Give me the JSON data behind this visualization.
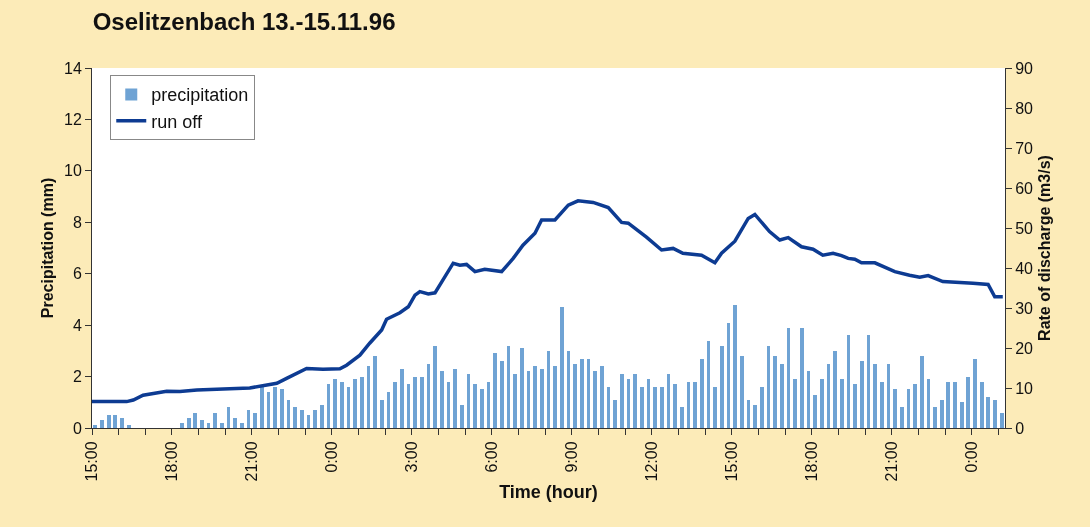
{
  "chart_data": {
    "type": "bar",
    "title": "Oselitzenbach 13.-15.11.96",
    "xlabel": "Time (hour)",
    "ylabel": "Precipitation (mm)",
    "y2label": "Rate of discharge (m3/s)",
    "x": [
      "--11-13T15:00",
      "--11-13T15:15",
      "--11-13T15:30",
      "--11-13T15:45",
      "--11-13T16:00",
      "--11-13T16:15",
      "--11-13T16:30",
      "--11-13T16:45",
      "--11-13T17:00",
      "--11-13T17:15",
      "--11-13T17:30",
      "--11-13T17:45",
      "--11-13T18:00",
      "--11-13T18:15",
      "--11-13T18:30",
      "--11-13T18:45",
      "--11-13T19:00",
      "--11-13T19:15",
      "--11-13T19:30",
      "--11-13T19:45",
      "--11-13T20:00",
      "--11-13T20:15",
      "--11-13T20:30",
      "--11-13T20:45",
      "--11-13T21:00",
      "--11-13T21:15",
      "--11-13T21:30",
      "--11-13T21:45",
      "--11-13T22:00",
      "--11-13T22:15",
      "--11-13T22:30",
      "--11-13T22:45",
      "--11-13T23:00",
      "--11-13T23:15",
      "--11-13T23:30",
      "--11-13T23:45",
      "--11-14T00:00",
      "--11-14T00:15",
      "--11-14T00:30",
      "--11-14T00:45",
      "--11-14T01:00",
      "--11-14T01:15",
      "--11-14T01:30",
      "--11-14T01:45",
      "--11-14T02:00",
      "--11-14T02:15",
      "--11-14T02:30",
      "--11-14T02:45",
      "--11-14T03:00",
      "--11-14T03:15",
      "--11-14T03:30",
      "--11-14T03:45",
      "--11-14T04:00",
      "--11-14T04:15",
      "--11-14T04:30",
      "--11-14T04:45",
      "--11-14T05:00",
      "--11-14T05:15",
      "--11-14T05:30",
      "--11-14T05:45",
      "--11-14T06:00",
      "--11-14T06:15",
      "--11-14T06:30",
      "--11-14T06:45",
      "--11-14T07:00",
      "--11-14T07:15",
      "--11-14T07:30",
      "--11-14T07:45",
      "--11-14T08:00",
      "--11-14T08:15",
      "--11-14T08:30",
      "--11-14T08:45",
      "--11-14T09:00",
      "--11-14T09:15",
      "--11-14T09:30",
      "--11-14T09:45",
      "--11-14T10:00",
      "--11-14T10:15",
      "--11-14T10:30",
      "--11-14T10:45",
      "--11-14T11:00",
      "--11-14T11:15",
      "--11-14T11:30",
      "--11-14T11:45",
      "--11-14T12:00",
      "--11-14T12:15",
      "--11-14T12:30",
      "--11-14T12:45",
      "--11-14T13:00",
      "--11-14T13:15",
      "--11-14T13:30",
      "--11-14T13:45",
      "--11-14T14:00",
      "--11-14T14:15",
      "--11-14T14:30",
      "--11-14T14:45",
      "--11-14T15:00",
      "--11-14T15:15",
      "--11-14T15:30",
      "--11-14T15:45",
      "--11-14T16:00",
      "--11-14T16:15",
      "--11-14T16:30",
      "--11-14T16:45",
      "--11-14T17:00",
      "--11-14T17:15",
      "--11-14T17:30",
      "--11-14T17:45",
      "--11-14T18:00",
      "--11-14T18:15",
      "--11-14T18:30",
      "--11-14T18:45",
      "--11-14T19:00",
      "--11-14T19:15",
      "--11-14T19:30",
      "--11-14T19:45",
      "--11-14T20:00",
      "--11-14T20:15",
      "--11-14T20:30",
      "--11-14T20:45",
      "--11-14T21:00",
      "--11-14T21:15",
      "--11-14T21:30",
      "--11-14T21:45",
      "--11-14T22:00",
      "--11-14T22:15",
      "--11-14T22:30",
      "--11-14T22:45",
      "--11-14T23:00",
      "--11-14T23:15",
      "--11-14T23:30",
      "--11-14T23:45",
      "--11-15T00:00",
      "--11-15T00:15",
      "--11-15T00:30",
      "--11-15T00:45",
      "--11-15T01:00"
    ],
    "series": [
      {
        "name": "precipitation",
        "color": "#6fa3d4",
        "values": [
          0.1,
          0.3,
          0.5,
          0.5,
          0.4,
          0.1,
          0,
          0,
          0,
          0,
          0,
          0,
          0,
          0.2,
          0.4,
          0.6,
          0.3,
          0.2,
          0.6,
          0.2,
          0.8,
          0.4,
          0.2,
          0.7,
          0.6,
          1.6,
          1.4,
          1.6,
          1.5,
          1.1,
          0.8,
          0.7,
          0.5,
          0.7,
          0.9,
          1.7,
          1.9,
          1.8,
          1.6,
          1.9,
          2.0,
          2.4,
          2.8,
          1.1,
          1.4,
          1.8,
          2.3,
          1.7,
          2.0,
          2.0,
          2.5,
          3.2,
          2.2,
          1.8,
          2.3,
          0.9,
          2.1,
          1.7,
          1.5,
          1.8,
          2.9,
          2.6,
          3.2,
          2.1,
          3.1,
          2.2,
          2.4,
          2.3,
          3.0,
          2.4,
          4.7,
          3.0,
          2.5,
          2.7,
          2.7,
          2.2,
          2.4,
          1.6,
          1.1,
          2.1,
          1.9,
          2.1,
          1.6,
          1.9,
          1.6,
          1.6,
          2.1,
          1.7,
          0.8,
          1.8,
          1.8,
          2.7,
          3.4,
          1.6,
          3.2,
          4.1,
          4.8,
          2.8,
          1.1,
          0.9,
          1.6,
          3.2,
          2.8,
          2.5,
          3.9,
          1.9,
          3.9,
          2.2,
          1.3,
          1.9,
          2.5,
          3.0,
          1.9,
          3.6,
          1.7,
          2.6,
          3.6,
          2.5,
          1.8,
          2.5,
          1.5,
          0.8,
          1.5,
          1.7,
          2.8,
          1.9,
          0.8,
          1.1,
          1.8,
          1.8,
          1.0,
          2.0,
          2.7,
          1.8,
          1.2,
          1.1,
          0.6
        ]
      },
      {
        "name": "run off",
        "type": "line",
        "axis": "y2",
        "color": "#0d3b92",
        "x": [
          "--11-13T15:00",
          "--11-13T16:18",
          "--11-13T16:33",
          "--11-13T16:55",
          "--11-13T17:48",
          "--11-13T18:18",
          "--11-13T18:56",
          "--11-13T20:10",
          "--11-13T20:55",
          "--11-13T21:56",
          "--11-13T22:18",
          "--11-13T23:03",
          "--11-13T23:40",
          "--11-14T00:18",
          "--11-14T00:33",
          "--11-14T01:03",
          "--11-14T01:25",
          "--11-14T01:52",
          "--11-14T02:03",
          "--11-14T02:33",
          "--11-14T02:52",
          "--11-14T03:07",
          "--11-14T03:18",
          "--11-14T03:37",
          "--11-14T03:52",
          "--11-14T04:33",
          "--11-14T04:48",
          "--11-14T05:03",
          "--11-14T05:22",
          "--11-14T05:44",
          "--11-14T06:22",
          "--11-14T06:48",
          "--11-14T07:10",
          "--11-14T07:37",
          "--11-14T07:52",
          "--11-14T08:22",
          "--11-14T08:52",
          "--11-14T09:14",
          "--11-14T09:48",
          "--11-14T10:22",
          "--11-14T10:52",
          "--11-14T11:07",
          "--11-14T11:48",
          "--11-14T12:22",
          "--11-14T12:48",
          "--11-14T13:10",
          "--11-14T13:52",
          "--11-14T14:22",
          "--11-14T14:37",
          "--11-14T15:07",
          "--11-14T15:37",
          "--11-14T15:52",
          "--11-14T16:25",
          "--11-14T16:48",
          "--11-14T17:07",
          "--11-14T17:37",
          "--11-14T18:03",
          "--11-14T18:25",
          "--11-14T18:48",
          "--11-14T19:07",
          "--11-14T19:22",
          "--11-14T19:37",
          "--11-14T19:52",
          "--11-14T20:22",
          "--11-14T21:07",
          "--11-14T21:40",
          "--11-14T22:03",
          "--11-14T22:22",
          "--11-14T22:55",
          "--11-15T00:03",
          "--11-15T00:37",
          "--11-15T00:52",
          "--11-15T01:10"
        ],
        "values": [
          6.6,
          6.6,
          7.0,
          8.2,
          9.2,
          9.1,
          9.5,
          9.8,
          10.0,
          11.2,
          12.4,
          14.9,
          14.7,
          14.8,
          15.7,
          18.2,
          21.2,
          24.5,
          27.2,
          28.8,
          30.3,
          33.2,
          34.1,
          33.5,
          33.8,
          41.2,
          40.7,
          40.9,
          39.1,
          39.7,
          39.1,
          42.4,
          45.7,
          48.7,
          52.0,
          52.0,
          55.7,
          56.8,
          56.4,
          55.1,
          51.4,
          51.2,
          47.7,
          44.5,
          44.9,
          43.7,
          43.2,
          41.3,
          43.7,
          46.7,
          52.4,
          53.4,
          49.1,
          47.0,
          47.6,
          45.3,
          44.7,
          43.2,
          43.7,
          43.1,
          42.4,
          42.2,
          41.3,
          41.3,
          39.1,
          38.2,
          37.7,
          38.1,
          36.6,
          36.2,
          35.9,
          32.8,
          32.8
        ]
      }
    ],
    "xlim": [
      "--11-13T15:00",
      "--11-15T01:15"
    ],
    "xticks": [
      {
        "value": "--11-13T15:00",
        "label": "15:00"
      },
      {
        "value": "--11-13T16:00",
        "label": null
      },
      {
        "value": "--11-13T17:00",
        "label": null
      },
      {
        "value": "--11-13T18:00",
        "label": "18:00"
      },
      {
        "value": "--11-13T19:00",
        "label": null
      },
      {
        "value": "--11-13T20:00",
        "label": null
      },
      {
        "value": "--11-13T21:00",
        "label": "21:00"
      },
      {
        "value": "--11-13T22:00",
        "label": null
      },
      {
        "value": "--11-13T23:00",
        "label": null
      },
      {
        "value": "--11-14T00:00",
        "label": "0:00"
      },
      {
        "value": "--11-14T01:00",
        "label": null
      },
      {
        "value": "--11-14T02:00",
        "label": null
      },
      {
        "value": "--11-14T03:00",
        "label": "3:00"
      },
      {
        "value": "--11-14T04:00",
        "label": null
      },
      {
        "value": "--11-14T05:00",
        "label": null
      },
      {
        "value": "--11-14T06:00",
        "label": "6:00"
      },
      {
        "value": "--11-14T07:00",
        "label": null
      },
      {
        "value": "--11-14T08:00",
        "label": null
      },
      {
        "value": "--11-14T09:00",
        "label": "9:00"
      },
      {
        "value": "--11-14T10:00",
        "label": null
      },
      {
        "value": "--11-14T11:00",
        "label": null
      },
      {
        "value": "--11-14T12:00",
        "label": "12:00"
      },
      {
        "value": "--11-14T13:00",
        "label": null
      },
      {
        "value": "--11-14T14:00",
        "label": null
      },
      {
        "value": "--11-14T15:00",
        "label": "15:00"
      },
      {
        "value": "--11-14T16:00",
        "label": null
      },
      {
        "value": "--11-14T17:00",
        "label": null
      },
      {
        "value": "--11-14T18:00",
        "label": "18:00"
      },
      {
        "value": "--11-14T19:00",
        "label": null
      },
      {
        "value": "--11-14T20:00",
        "label": null
      },
      {
        "value": "--11-14T21:00",
        "label": "21:00"
      },
      {
        "value": "--11-14T22:00",
        "label": null
      },
      {
        "value": "--11-14T23:00",
        "label": null
      },
      {
        "value": "--11-15T00:00",
        "label": "0:00"
      },
      {
        "value": "--11-15T01:00",
        "label": null
      }
    ],
    "ylim": [
      0,
      14
    ],
    "yticks": [
      0,
      2,
      4,
      6,
      8,
      10,
      12,
      14
    ],
    "y2lim": [
      0,
      90
    ],
    "y2ticks": [
      0,
      10,
      20,
      30,
      40,
      50,
      60,
      70,
      80,
      90
    ],
    "legend": "top left"
  }
}
